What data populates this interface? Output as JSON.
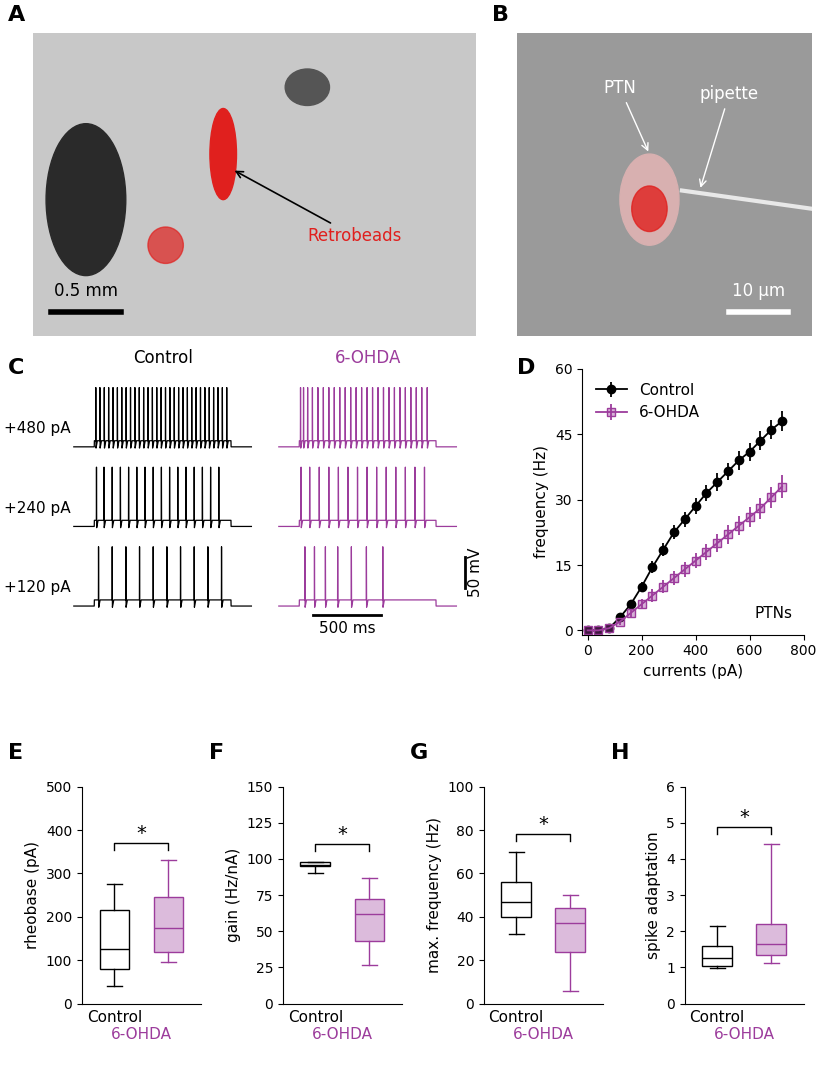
{
  "chart_data": [
    {
      "panel": "A",
      "type": "image",
      "texts": {
        "label": "Retrobeads",
        "scale_bar": "0.5 mm"
      }
    },
    {
      "panel": "B",
      "type": "image",
      "texts": {
        "cell": "PTN",
        "electrode": "pipette",
        "scale_bar": "10 µm"
      }
    },
    {
      "panel": "C",
      "type": "trace",
      "step_ms": [
        0,
        1000
      ],
      "series": [
        {
          "name": "Control",
          "color": "#000000",
          "traces": [
            {
              "label": "+480 pA",
              "spike_times_ms": [
                10,
                40,
                72,
                104,
                136,
                168,
                200,
                232,
                264,
                296,
                328,
                360,
                392,
                424,
                456,
                488,
                520,
                552,
                584,
                616,
                648,
                680,
                712,
                744,
                776,
                808,
                840,
                872,
                904,
                936,
                968
              ]
            },
            {
              "label": "+240 pA",
              "spike_times_ms": [
                15,
                70,
                130,
                190,
                250,
                310,
                370,
                430,
                490,
                550,
                610,
                670,
                730,
                790,
                850,
                910
              ]
            },
            {
              "label": "+120 pA",
              "spike_times_ms": [
                30,
                130,
                230,
                330,
                430,
                530,
                630,
                730,
                830,
                930
              ]
            }
          ]
        },
        {
          "name": "6-OHDA",
          "color": "#9c3c9c",
          "traces": [
            {
              "label": "+480 pA",
              "spike_times_ms": [
                8,
                30,
                60,
                95,
                135,
                175,
                215,
                255,
                295,
                335,
                375,
                415,
                455,
                495,
                535,
                575,
                615,
                655,
                695,
                735,
                775,
                815,
                855,
                895,
                935
              ]
            },
            {
              "label": "+240 pA",
              "spike_times_ms": [
                12,
                75,
                145,
                215,
                285,
                355,
                425,
                495,
                565,
                635,
                705,
                775,
                845,
                915
              ]
            },
            {
              "label": "+120 pA",
              "spike_times_ms": [
                40,
                110,
                190,
                280,
                380,
                490,
                610
              ]
            }
          ]
        }
      ],
      "scale_bars": {
        "voltage": 50,
        "voltage_label": "50 mV",
        "time": 500,
        "time_label": "500 ms"
      }
    },
    {
      "panel": "D",
      "type": "line",
      "x": [
        0,
        40,
        80,
        120,
        160,
        200,
        240,
        280,
        320,
        360,
        400,
        440,
        480,
        520,
        560,
        600,
        640,
        680,
        720
      ],
      "series": [
        {
          "name": "Control",
          "color": "#000000",
          "marker": "circle",
          "values": [
            0,
            0,
            0.5,
            3,
            6,
            10,
            14.5,
            18.5,
            22.5,
            25.5,
            28.5,
            31.5,
            34,
            36.5,
            39,
            41,
            43.5,
            46,
            48
          ],
          "errors": [
            0,
            0,
            0.3,
            0.8,
            1,
            1.2,
            1.4,
            1.5,
            1.6,
            1.7,
            1.8,
            1.9,
            2,
            2,
            2.1,
            2.1,
            2.2,
            2.2,
            2.3
          ]
        },
        {
          "name": "6-OHDA",
          "color": "#9c3c9c",
          "marker": "square",
          "values": [
            0,
            0,
            0.5,
            2,
            4,
            6,
            8,
            10,
            12,
            14,
            16,
            18,
            20,
            22,
            24,
            26,
            28,
            30.5,
            33
          ],
          "errors": [
            0,
            0,
            0.3,
            0.8,
            1,
            1.2,
            1.4,
            1.5,
            1.6,
            1.7,
            1.8,
            1.9,
            2,
            2.1,
            2.2,
            2.3,
            2.4,
            2.5,
            2.6
          ]
        }
      ],
      "xlabel": "currents (pA)",
      "ylabel": "frequency (Hz)",
      "xlim": [
        -20,
        800
      ],
      "xticks": [
        0,
        200,
        400,
        600,
        800
      ],
      "ylim": [
        -1,
        60
      ],
      "yticks": [
        0,
        15,
        30,
        45,
        60
      ],
      "legend": "upper left",
      "annotation": "PTNs"
    },
    {
      "panel": "E",
      "type": "box",
      "ylabel": "rheobase (pA)",
      "categories": [
        "Control",
        "6-OHDA"
      ],
      "colors": [
        "#000000",
        "#9c3c9c"
      ],
      "boxes": [
        {
          "whislo": 40,
          "q1": 80,
          "med": 125,
          "q3": 215,
          "whishi": 275
        },
        {
          "whislo": 95,
          "q1": 120,
          "med": 175,
          "q3": 245,
          "whishi": 330
        }
      ],
      "ylim": [
        0,
        500
      ],
      "yticks": [
        0,
        100,
        200,
        300,
        400,
        500
      ],
      "significance": "*"
    },
    {
      "panel": "F",
      "type": "box",
      "ylabel": "gain (Hz/nA)",
      "categories": [
        "Control",
        "6-OHDA"
      ],
      "colors": [
        "#000000",
        "#9c3c9c"
      ],
      "boxes": [
        {
          "whislo": 90,
          "q1": 95,
          "med": 96,
          "q3": 98,
          "whishi": 98
        },
        {
          "whislo": 27,
          "q1": 43,
          "med": 62,
          "q3": 72,
          "whishi": 87
        }
      ],
      "ylim": [
        0,
        150
      ],
      "yticks": [
        0,
        25,
        50,
        75,
        100,
        125,
        150
      ],
      "significance": "*"
    },
    {
      "panel": "G",
      "type": "box",
      "ylabel": "max. frequency (Hz)",
      "categories": [
        "Control",
        "6-OHDA"
      ],
      "colors": [
        "#000000",
        "#9c3c9c"
      ],
      "boxes": [
        {
          "whislo": 32,
          "q1": 40,
          "med": 47,
          "q3": 56,
          "whishi": 70
        },
        {
          "whislo": 6,
          "q1": 24,
          "med": 37,
          "q3": 44,
          "whishi": 50
        }
      ],
      "ylim": [
        0,
        100
      ],
      "yticks": [
        0,
        20,
        40,
        60,
        80,
        100
      ],
      "significance": "*"
    },
    {
      "panel": "H",
      "type": "box",
      "ylabel": "spike adaptation",
      "categories": [
        "Control",
        "6-OHDA"
      ],
      "colors": [
        "#000000",
        "#9c3c9c"
      ],
      "boxes": [
        {
          "whislo": 0.98,
          "q1": 1.05,
          "med": 1.25,
          "q3": 1.6,
          "whishi": 2.15
        },
        {
          "whislo": 1.12,
          "q1": 1.35,
          "med": 1.65,
          "q3": 2.2,
          "whishi": 4.4
        }
      ],
      "ylim": [
        0,
        6
      ],
      "yticks": [
        0,
        1,
        2,
        3,
        4,
        5,
        6
      ],
      "significance": "*"
    }
  ]
}
